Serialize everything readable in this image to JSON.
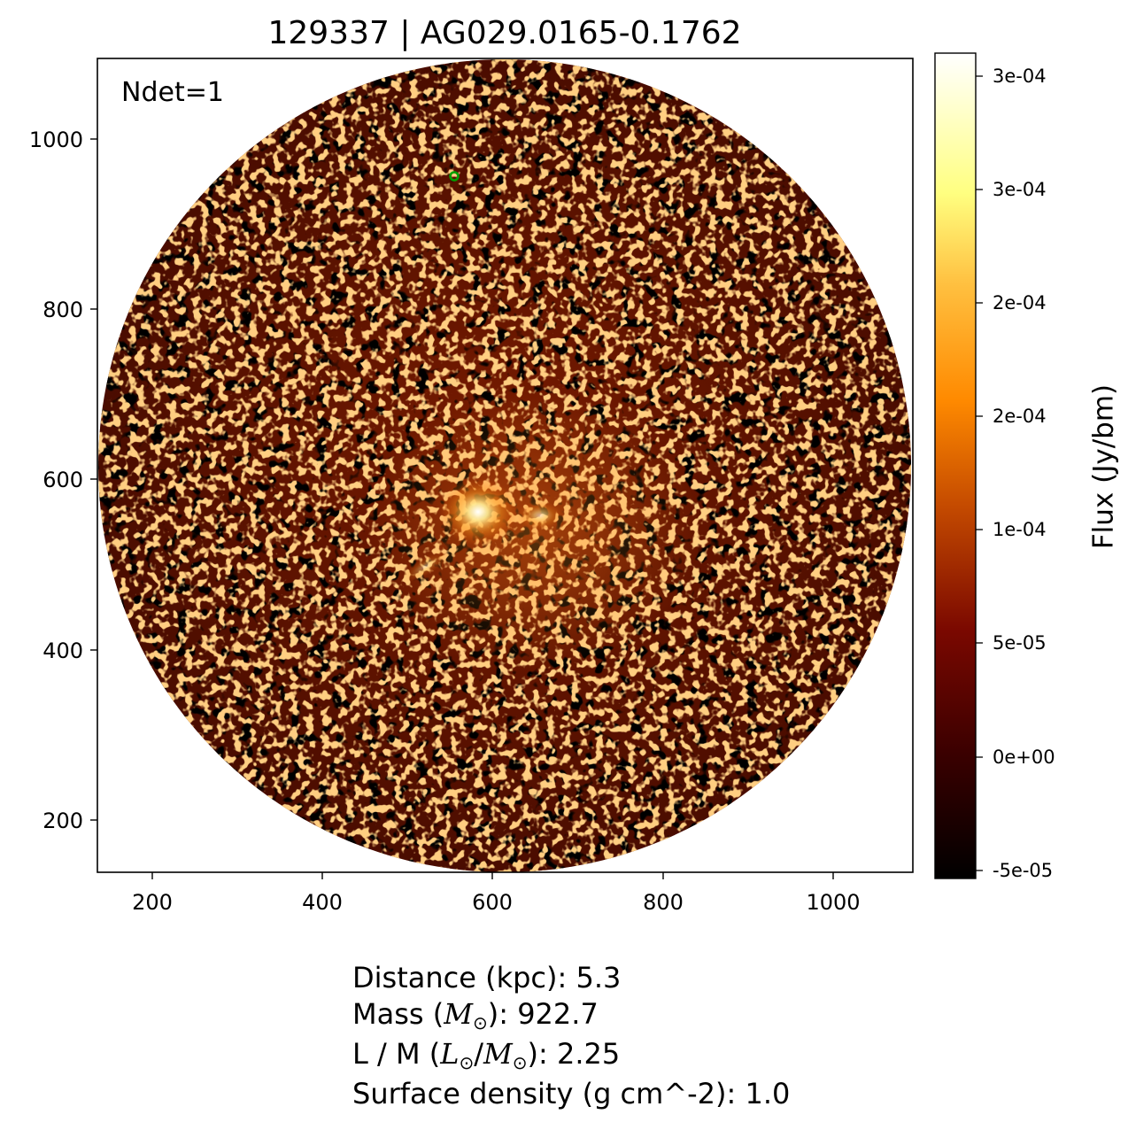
{
  "figure": {
    "title": "129337 | AG029.0165-0.1762",
    "ndet_label": "Ndet=1",
    "x_ticks": [
      "200",
      "400",
      "600",
      "800",
      "1000"
    ],
    "y_ticks": [
      "200",
      "400",
      "600",
      "800",
      "1000"
    ],
    "colorbar": {
      "label": "Flux (Jy/bm)",
      "ticks": [
        "3e-04",
        "3e-04",
        "2e-04",
        "2e-04",
        "1e-04",
        "5e-05",
        "0e+00",
        "-5e-05"
      ],
      "colormap": "afmhot",
      "stops": [
        "#000000",
        "#5a0000",
        "#a83000",
        "#ff8000",
        "#ffc040",
        "#ffff80",
        "#ffffff"
      ]
    },
    "marker": {
      "shape": "circle",
      "color": "#00a000",
      "x": 555,
      "y": 957
    },
    "bright_source": {
      "x": 590,
      "y": 570
    }
  },
  "info": {
    "distance_prefix": "Distance (kpc): ",
    "distance_value": "5.3",
    "mass_prefix": "Mass (",
    "mass_symbol": "M",
    "mass_suffix": "): ",
    "mass_value": "922.7",
    "lm_prefix": "L / M (",
    "lm_l": "L",
    "lm_slash": "/",
    "lm_m": "M",
    "lm_suffix": "): ",
    "lm_value": "2.25",
    "sun_symbol": "⊙",
    "surface_prefix": "Surface density (g cm^-2): ",
    "surface_value": "1.0"
  }
}
